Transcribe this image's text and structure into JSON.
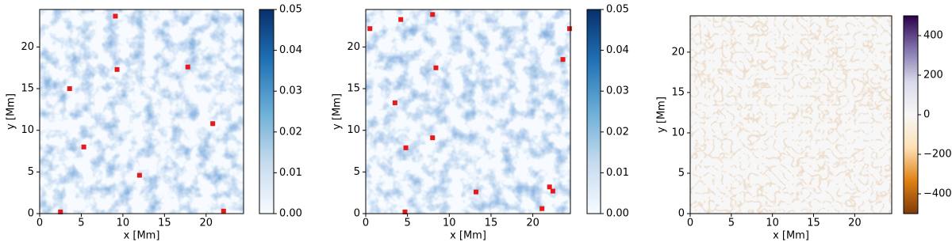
{
  "chart_data": [
    {
      "type": "heatmap",
      "x_label": "x [Mm]",
      "y_label": "y [Mm]",
      "xlim": [
        0,
        24.5
      ],
      "ylim": [
        0,
        24.5
      ],
      "xticks": [
        0,
        5,
        10,
        15,
        20
      ],
      "yticks": [
        0,
        5,
        10,
        15,
        20
      ],
      "cmap": [
        "#f7fbff",
        "#c6dbef",
        "#6baed6",
        "#2171b5",
        "#08306b"
      ],
      "clim": [
        0,
        0.05
      ],
      "cticks": [
        {
          "value": 0,
          "label": "0.00"
        },
        {
          "value": 0.01,
          "label": "0.01"
        },
        {
          "value": 0.02,
          "label": "0.02"
        },
        {
          "value": 0.03,
          "label": "0.03"
        },
        {
          "value": 0.04,
          "label": "0.04"
        },
        {
          "value": 0.05,
          "label": "0.05"
        }
      ],
      "spots": {
        "color": "#e41a1c",
        "x": [
          9.1,
          9.3,
          17.8,
          3.6,
          20.8,
          5.3,
          12.0,
          22.1,
          2.5
        ],
        "y": [
          23.7,
          17.3,
          17.6,
          15.0,
          10.8,
          8.0,
          4.6,
          0.3,
          0.2
        ]
      }
    },
    {
      "type": "heatmap",
      "x_label": "x [Mm]",
      "y_label": "y [Mm]",
      "xlim": [
        0,
        24.5
      ],
      "ylim": [
        0,
        24.5
      ],
      "xticks": [
        0,
        5,
        10,
        15,
        20
      ],
      "yticks": [
        0,
        5,
        10,
        15,
        20
      ],
      "cmap": [
        "#f7fbff",
        "#c6dbef",
        "#6baed6",
        "#2171b5",
        "#08306b"
      ],
      "clim": [
        0,
        0.05
      ],
      "cticks": [
        {
          "value": 0,
          "label": "0.00"
        },
        {
          "value": 0.01,
          "label": "0.01"
        },
        {
          "value": 0.02,
          "label": "0.02"
        },
        {
          "value": 0.03,
          "label": "0.03"
        },
        {
          "value": 0.04,
          "label": "0.04"
        },
        {
          "value": 0.05,
          "label": "0.05"
        }
      ],
      "spots": {
        "color": "#e41a1c",
        "x": [
          4.2,
          8.0,
          0.5,
          24.4,
          8.4,
          23.6,
          3.5,
          8.0,
          4.8,
          13.2,
          22.0,
          22.4,
          4.7,
          21.1
        ],
        "y": [
          23.3,
          23.9,
          22.2,
          22.2,
          17.5,
          18.5,
          13.3,
          9.1,
          7.9,
          2.6,
          3.2,
          2.7,
          0.2,
          0.6
        ]
      }
    },
    {
      "type": "heatmap",
      "x_label": "x [Mm]",
      "y_label": "y [Mm]",
      "xlim": [
        0,
        24.5
      ],
      "ylim": [
        0,
        24.5
      ],
      "xticks": [
        0,
        5,
        10,
        15,
        20
      ],
      "yticks": [
        0,
        5,
        10,
        15,
        20
      ],
      "cmap": [
        "#7f3b08",
        "#e08214",
        "#fee0b6",
        "#f7f7f7",
        "#d8daeb",
        "#8073ac",
        "#2d004b"
      ],
      "clim": [
        -500,
        500
      ],
      "cticks": [
        {
          "value": -400,
          "label": "−400"
        },
        {
          "value": -200,
          "label": "−200"
        },
        0,
        200,
        400
      ]
    }
  ]
}
